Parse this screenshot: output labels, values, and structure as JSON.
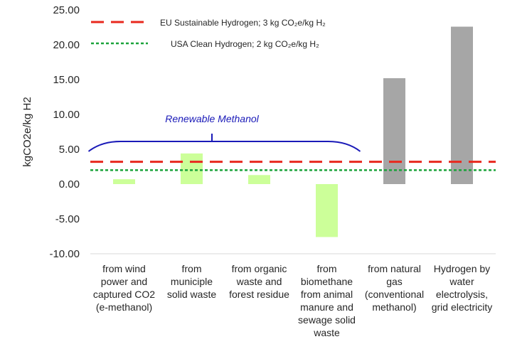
{
  "chart_data": {
    "type": "bar",
    "ylabel": "kgCO2e/kg H2",
    "ylim": [
      -10,
      25
    ],
    "yticks": [
      "-10.00",
      "-5.00",
      "0.00",
      "5.00",
      "10.00",
      "15.00",
      "20.00",
      "25.00"
    ],
    "ytick_values": [
      -10,
      -5,
      0,
      5,
      10,
      15,
      20,
      25
    ],
    "categories": [
      [
        "from wind",
        "power and",
        "captured CO2",
        "(e-methanol)"
      ],
      [
        "from",
        "municiple",
        "solid waste"
      ],
      [
        "from organic",
        "waste and",
        "forest residue"
      ],
      [
        "from",
        "biomethane",
        "from animal",
        "manure and",
        "sewage solid",
        "waste"
      ],
      [
        "from natural",
        "gas",
        "(conventional",
        "methanol)"
      ],
      [
        "Hydrogen by",
        "water",
        "electrolysis,",
        "grid electricity"
      ]
    ],
    "values": [
      0.7,
      4.4,
      1.3,
      -7.6,
      15.2,
      22.6
    ],
    "bar_colors": [
      "#ccff99",
      "#ccff99",
      "#ccff99",
      "#ccff99",
      "#a6a6a6",
      "#a6a6a6"
    ],
    "reference_lines": [
      {
        "name": "EU Sustainable Hydrogen; 3 kg CO₂e/kg H₂",
        "value": 3.2,
        "color": "#e8281e",
        "style": "dashed"
      },
      {
        "name": "USA Clean Hydrogen; 2 kg CO₂e/kg H₂",
        "value": 2.0,
        "color": "#1aa33a",
        "style": "dotted"
      }
    ],
    "annotation": {
      "text": "Renewable Methanol",
      "color": "#1a1ab8",
      "spans_categories": [
        0,
        3
      ]
    },
    "grid": false,
    "legend": "top-left"
  }
}
